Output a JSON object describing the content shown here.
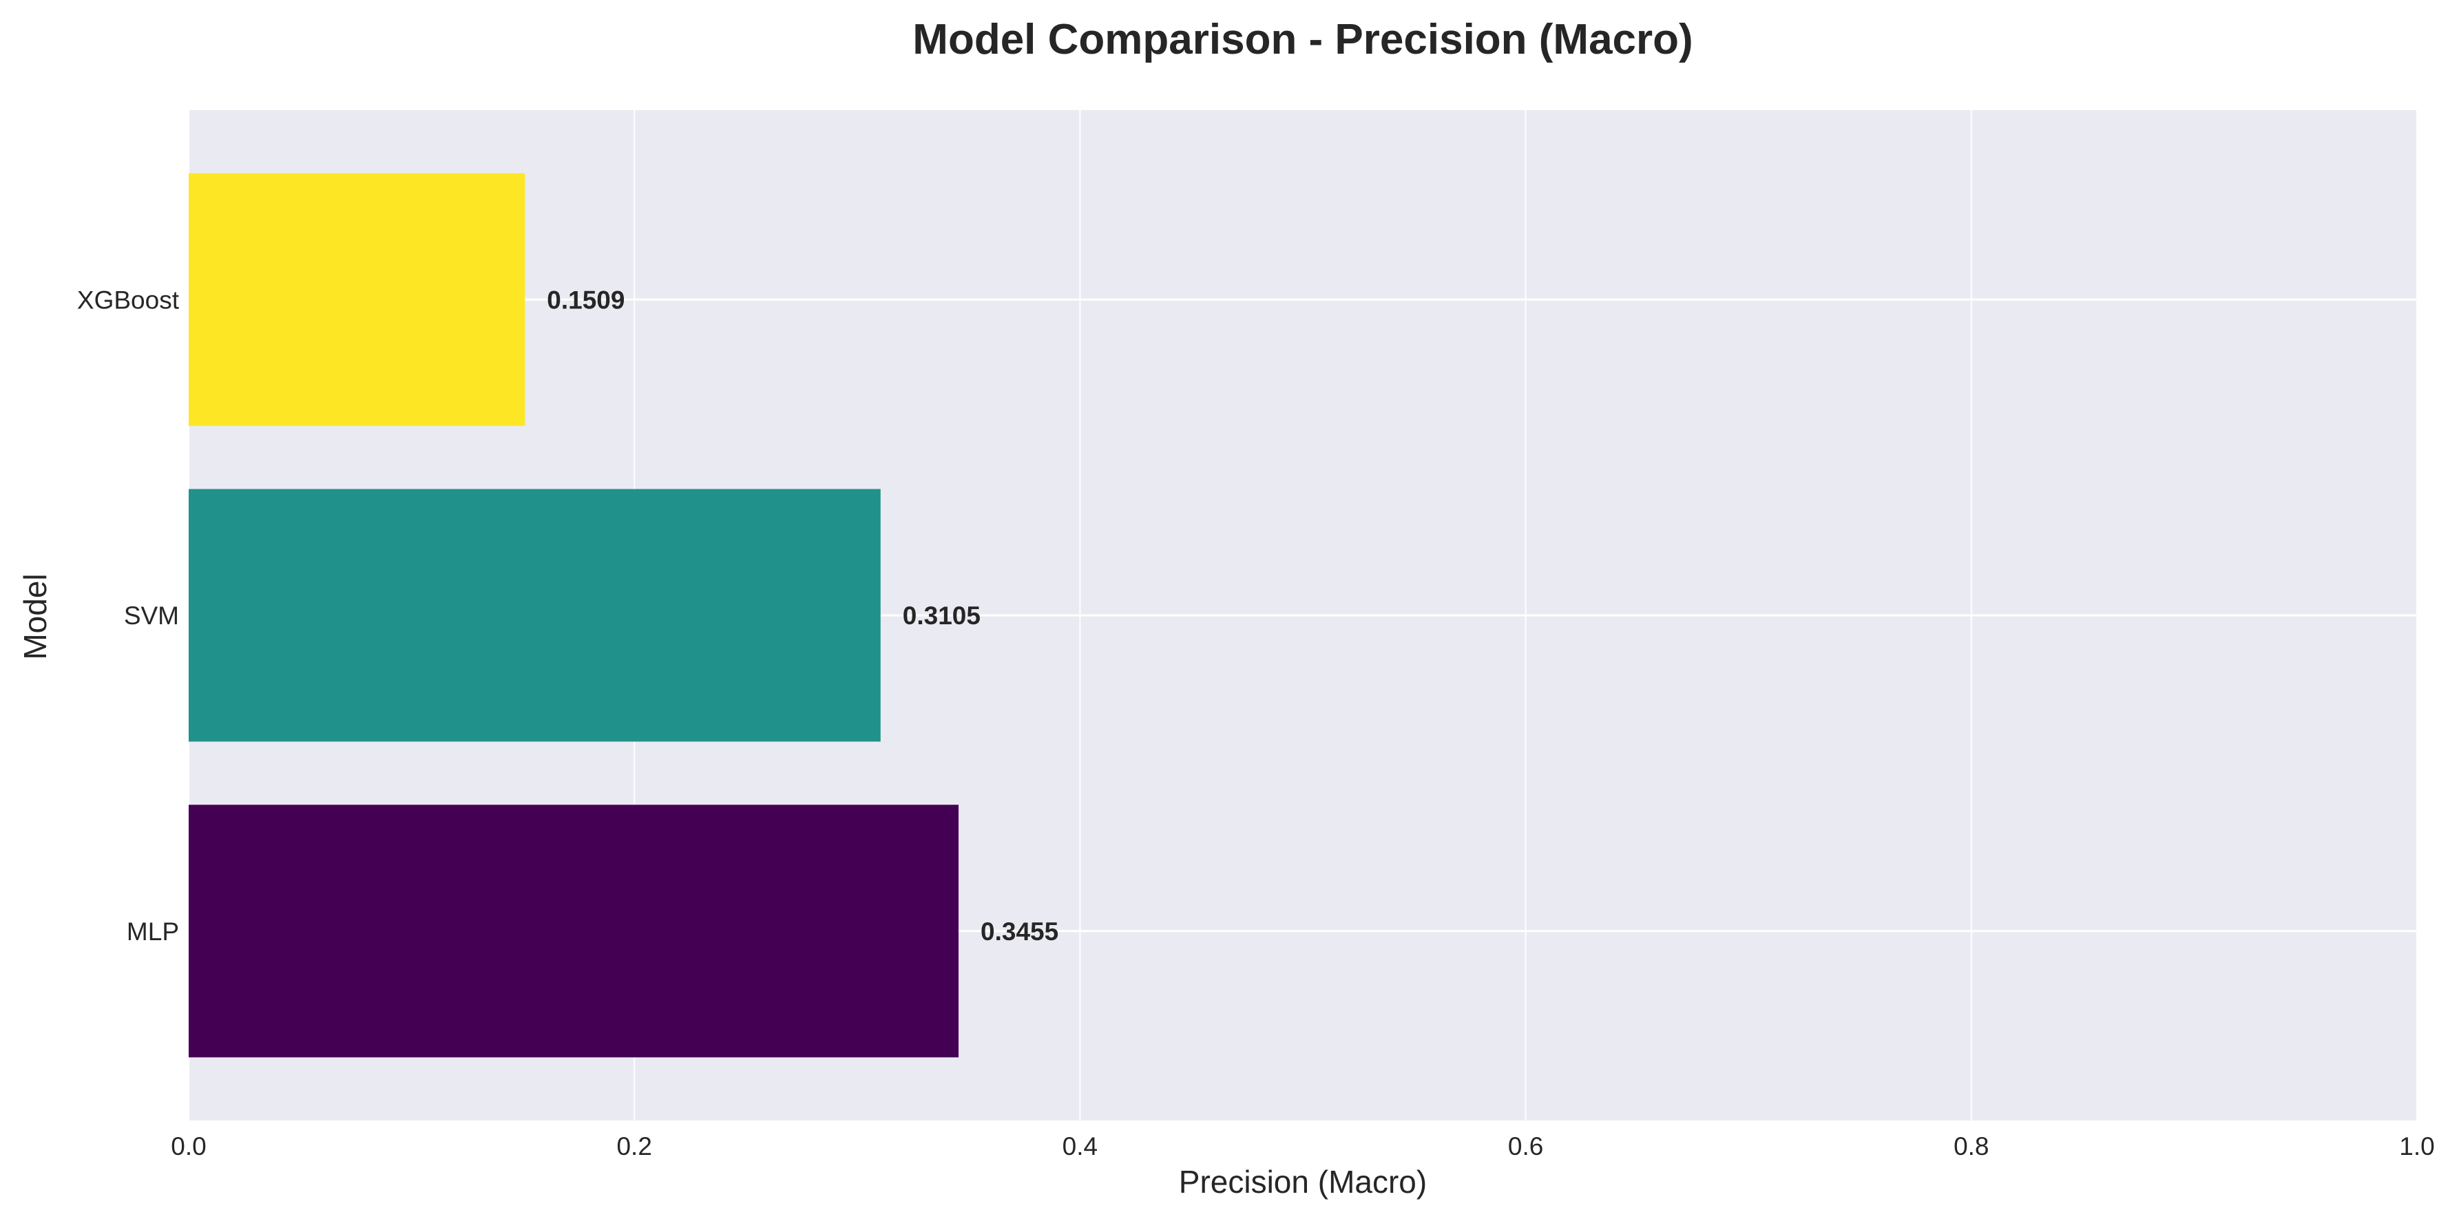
{
  "chart_data": {
    "type": "bar",
    "orientation": "horizontal",
    "title": "Model Comparison - Precision (Macro)",
    "xlabel": "Precision (Macro)",
    "ylabel": "Model",
    "xlim": [
      0.0,
      1.0
    ],
    "x_ticks": [
      "0.0",
      "0.2",
      "0.4",
      "0.6",
      "0.8",
      "1.0"
    ],
    "categories": [
      "XGBoost",
      "SVM",
      "MLP"
    ],
    "values": [
      0.1509,
      0.3105,
      0.3455
    ],
    "value_labels": [
      "0.1509",
      "0.3105",
      "0.3455"
    ],
    "bar_colors": [
      "#fde725",
      "#21918c",
      "#440154"
    ],
    "grid": true,
    "background_color": "#eaeaf2",
    "grid_color": "#ffffff"
  }
}
